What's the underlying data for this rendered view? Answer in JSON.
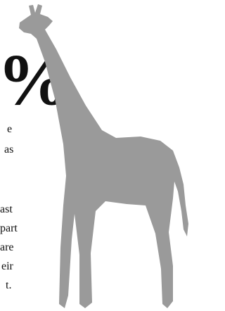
{
  "headline": {
    "symbol": "%"
  },
  "text_fragments": [
    "e",
    "as",
    "ast",
    "part",
    "are",
    "eir",
    "t."
  ]
}
